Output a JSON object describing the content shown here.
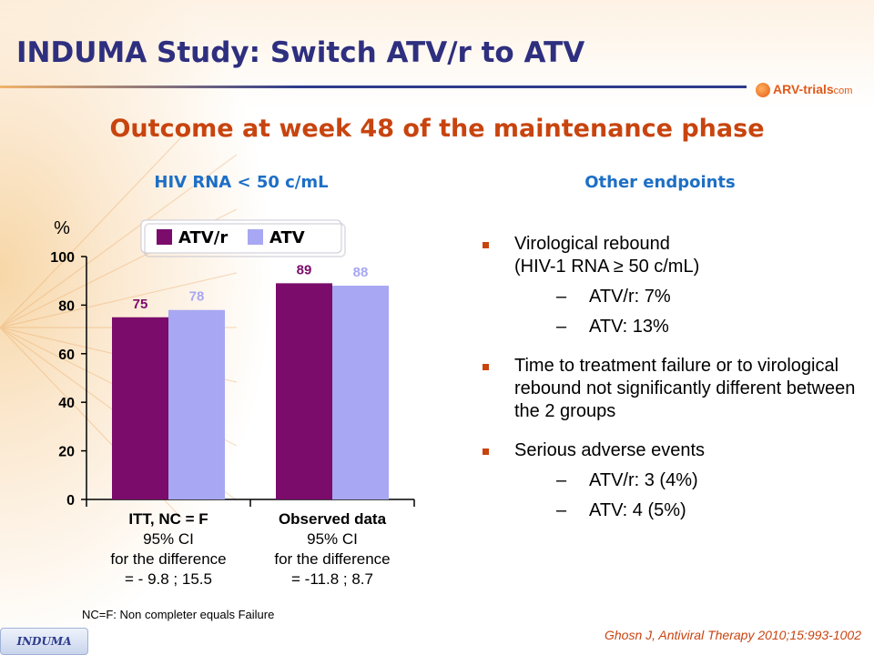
{
  "slide": {
    "title": "INDUMA Study: Switch ATV/r to ATV",
    "logo_text": "ARV-trials",
    "logo_suffix": "com",
    "subtitle": "Outcome at week 48 of the maintenance phase",
    "left_heading": "HIV RNA < 50 c/mL",
    "right_heading": "Other endpoints",
    "footnote": "NC=F: Non completer equals Failure",
    "badge": "INDUMA",
    "citation": "Ghosn J, Antiviral Therapy 2010;15:993-1002"
  },
  "chart_data": {
    "type": "bar",
    "title": "HIV RNA < 50 c/mL",
    "ylabel": "%",
    "ylim": [
      0,
      100
    ],
    "yticks": [
      0,
      20,
      40,
      60,
      80,
      100
    ],
    "categories": [
      "ITT, NC = F",
      "Observed data"
    ],
    "series": [
      {
        "name": "ATV/r",
        "values": [
          75,
          89
        ],
        "color": "#7b0c6b",
        "label_color": "#7b0c6b"
      },
      {
        "name": "ATV",
        "values": [
          78,
          88
        ],
        "color": "#a7a7f3",
        "label_color": "#a7a7f3"
      }
    ],
    "legend_position": "top",
    "category_details": [
      {
        "line1": "ITT, NC = F",
        "line2": "95% CI",
        "line3": "for the difference",
        "line4": "= - 9.8 ; 15.5"
      },
      {
        "line1": "Observed data",
        "line2": "95% CI",
        "line3": "for the difference",
        "line4": "= -11.8 ; 8.7"
      }
    ]
  },
  "endpoints": [
    {
      "text": "Virological rebound",
      "text2": "(HIV-1 RNA ≥ 50 c/mL)",
      "subs": [
        "ATV/r: 7%",
        "ATV: 13%"
      ]
    },
    {
      "text": "Time to treatment failure or to virological rebound not significantly different between the 2 groups"
    },
    {
      "text": "Serious adverse events",
      "subs": [
        "ATV/r: 3 (4%)",
        "ATV: 4 (5%)"
      ]
    }
  ],
  "colors": {
    "title": "#2e2f7f",
    "accent": "#c8440f",
    "heading": "#1d6fc6"
  }
}
